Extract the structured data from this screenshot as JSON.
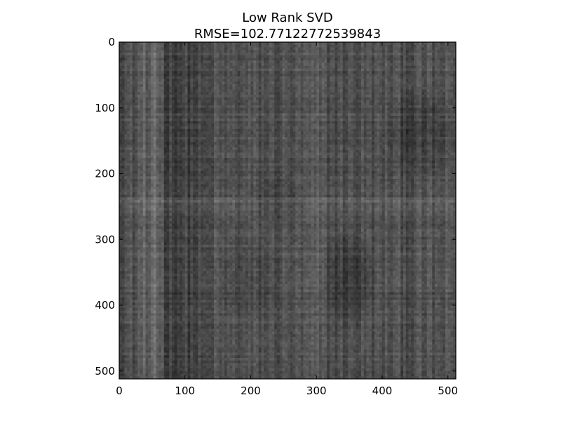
{
  "chart_data": {
    "type": "heatmap",
    "title": "Low Rank SVD",
    "subtitle": "RMSE=102.77122772539843",
    "xlabel": "",
    "ylabel": "",
    "xlim": [
      0,
      512
    ],
    "ylim": [
      512,
      0
    ],
    "x_ticks": [
      {
        "value": 0,
        "label": "0"
      },
      {
        "value": 100,
        "label": "100"
      },
      {
        "value": 200,
        "label": "200"
      },
      {
        "value": 300,
        "label": "300"
      },
      {
        "value": 400,
        "label": "400"
      },
      {
        "value": 500,
        "label": "500"
      }
    ],
    "y_ticks": [
      {
        "value": 0,
        "label": "0"
      },
      {
        "value": 100,
        "label": "100"
      },
      {
        "value": 200,
        "label": "200"
      },
      {
        "value": 300,
        "label": "300"
      },
      {
        "value": 400,
        "label": "400"
      },
      {
        "value": 500,
        "label": "500"
      }
    ],
    "image": {
      "width": 512,
      "height": 512,
      "colormap": "gray",
      "description_values": "grayscale low-rank SVD reconstruction with vertical streak structure"
    },
    "grid": false,
    "legend": "none"
  }
}
